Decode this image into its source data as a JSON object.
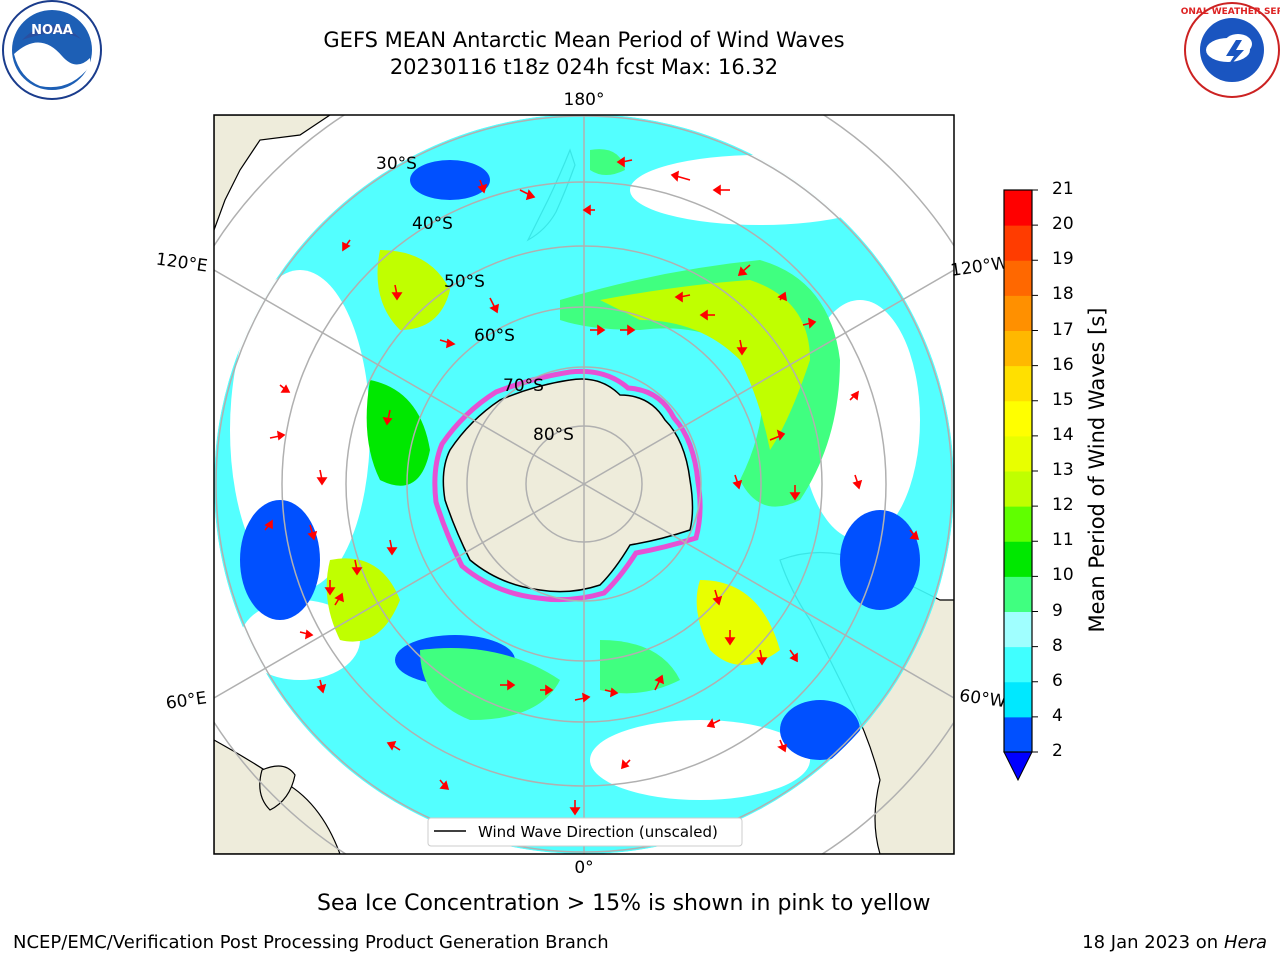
{
  "title": {
    "line1": "GEFS MEAN Antarctic Mean Period of Wind Waves",
    "line2": "20230116 t18z 024h fcst   Max: 16.32"
  },
  "logos": {
    "noaa_text": "NOAA",
    "nws_text": "NATIONAL WEATHER SERVICE"
  },
  "map": {
    "projection": "south-polar-stereographic",
    "longitude_labels": {
      "top": "180°",
      "bottom": "0°",
      "left_upper": "120°E",
      "left_lower": "60°E",
      "right_upper": "120°W",
      "right_lower": "60°W"
    },
    "latitude_labels": [
      "30°S",
      "40°S",
      "50°S",
      "60°S",
      "70°S",
      "80°S"
    ],
    "legend": "Wind Wave Direction (unscaled)",
    "colors": {
      "land": "#eeecdb",
      "ocean_missing": "#ffffff",
      "arrow": "#ff0000",
      "grid": "#b0b0b0",
      "ice_edge": "#ff33cc"
    }
  },
  "colorbar": {
    "label": "Mean Period of Wind Waves [s]",
    "ticks": [
      "2",
      "4",
      "6",
      "8",
      "9",
      "10",
      "11",
      "12",
      "13",
      "14",
      "15",
      "16",
      "17",
      "18",
      "19",
      "20",
      "21"
    ],
    "colors": [
      "#0050ff",
      "#00e8ff",
      "#40ffff",
      "#a0ffff",
      "#40ff80",
      "#00e800",
      "#60ff00",
      "#c0ff00",
      "#e8ff00",
      "#ffff00",
      "#ffe000",
      "#ffb800",
      "#ff9000",
      "#ff6800",
      "#ff3c00",
      "#ff0000"
    ],
    "under_color": "#0000ff"
  },
  "subtitle": "Sea Ice Concentration > 15% is shown in pink to yellow",
  "footer": {
    "left": "NCEP/EMC/Verification Post Processing Product Generation Branch",
    "right_date": "18 Jan 2023 on ",
    "right_host": "Hera"
  }
}
